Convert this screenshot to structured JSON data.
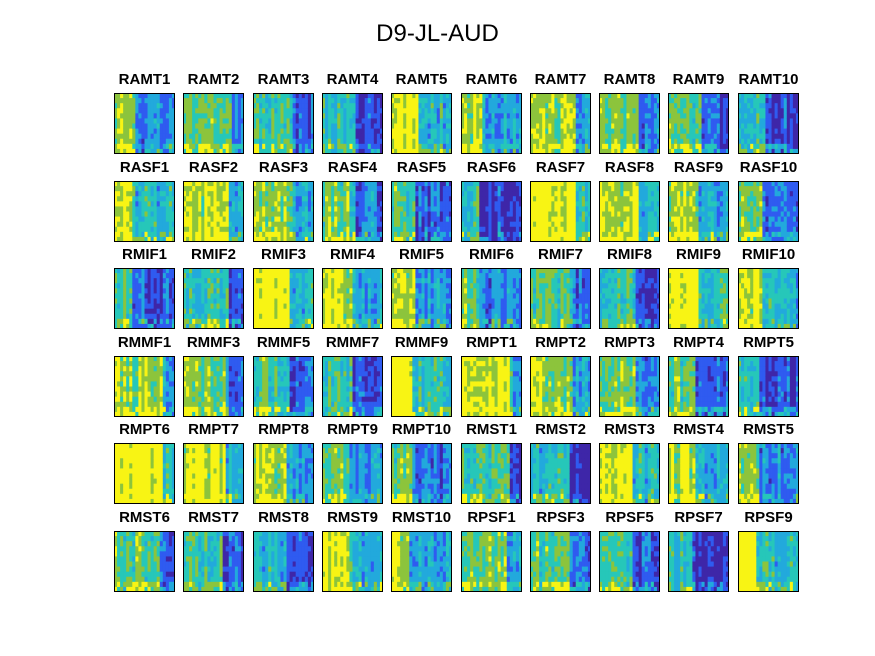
{
  "figure": {
    "title": "D9-JL-AUD"
  },
  "colors": {
    "dark": "#3e26a8",
    "blue": "#2f5bf0",
    "light_blue": "#22a9dc",
    "cyan": "#26c7b9",
    "green": "#8cc43c",
    "yellow": "#f8f414",
    "frame": "#000000"
  },
  "chart_data": {
    "type": "heatmap",
    "colormap": "parula",
    "rows": 6,
    "cols": 10,
    "panels": [
      {
        "label": "RAMT1"
      },
      {
        "label": "RAMT2"
      },
      {
        "label": "RAMT3"
      },
      {
        "label": "RAMT4"
      },
      {
        "label": "RAMT5"
      },
      {
        "label": "RAMT6"
      },
      {
        "label": "RAMT7"
      },
      {
        "label": "RAMT8"
      },
      {
        "label": "RAMT9"
      },
      {
        "label": "RAMT10"
      },
      {
        "label": "RASF1"
      },
      {
        "label": "RASF2"
      },
      {
        "label": "RASF3"
      },
      {
        "label": "RASF4"
      },
      {
        "label": "RASF5"
      },
      {
        "label": "RASF6"
      },
      {
        "label": "RASF7"
      },
      {
        "label": "RASF8"
      },
      {
        "label": "RASF9"
      },
      {
        "label": "RASF10"
      },
      {
        "label": "RMIF1"
      },
      {
        "label": "RMIF2"
      },
      {
        "label": "RMIF3"
      },
      {
        "label": "RMIF4"
      },
      {
        "label": "RMIF5"
      },
      {
        "label": "RMIF6"
      },
      {
        "label": "RMIF7"
      },
      {
        "label": "RMIF8"
      },
      {
        "label": "RMIF9"
      },
      {
        "label": "RMIF10"
      },
      {
        "label": "RMMF1"
      },
      {
        "label": "RMMF3"
      },
      {
        "label": "RMMF5"
      },
      {
        "label": "RMMF7"
      },
      {
        "label": "RMMF9"
      },
      {
        "label": "RMPT1"
      },
      {
        "label": "RMPT2"
      },
      {
        "label": "RMPT3"
      },
      {
        "label": "RMPT4"
      },
      {
        "label": "RMPT5"
      },
      {
        "label": "RMPT6"
      },
      {
        "label": "RMPT7"
      },
      {
        "label": "RMPT8"
      },
      {
        "label": "RMPT9"
      },
      {
        "label": "RMPT10"
      },
      {
        "label": "RMST1"
      },
      {
        "label": "RMST2"
      },
      {
        "label": "RMST3"
      },
      {
        "label": "RMST4"
      },
      {
        "label": "RMST5"
      },
      {
        "label": "RMST6"
      },
      {
        "label": "RMST7"
      },
      {
        "label": "RMST8"
      },
      {
        "label": "RMST9"
      },
      {
        "label": "RMST10"
      },
      {
        "label": "RPSF1"
      },
      {
        "label": "RPSF3"
      },
      {
        "label": "RPSF5"
      },
      {
        "label": "RPSF7"
      },
      {
        "label": "RPSF9"
      }
    ]
  }
}
